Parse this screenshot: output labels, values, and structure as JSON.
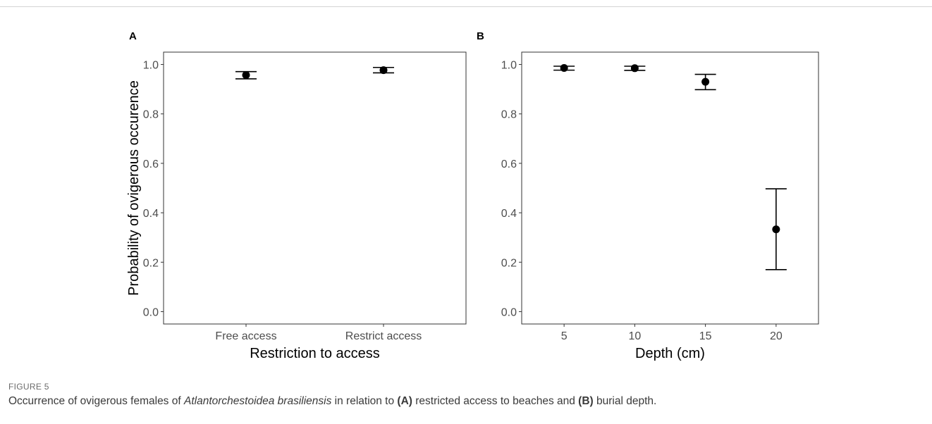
{
  "chart_data": [
    {
      "panel": "A",
      "type": "scatter",
      "categories": [
        "Free access",
        "Restrict access"
      ],
      "values": [
        0.957,
        0.977
      ],
      "ci_low": [
        0.942,
        0.966
      ],
      "ci_high": [
        0.971,
        0.988
      ],
      "xlabel": "Restriction to access",
      "ylabel": "Probability of ovigerous occurence",
      "ylim": [
        -0.05,
        1.05
      ],
      "yticks": [
        "0.0",
        "0.2",
        "0.4",
        "0.6",
        "0.8",
        "1.0"
      ],
      "grid": false
    },
    {
      "panel": "B",
      "type": "scatter",
      "categories": [
        "5",
        "10",
        "15",
        "20"
      ],
      "values": [
        0.986,
        0.985,
        0.93,
        0.333
      ],
      "ci_low": [
        0.977,
        0.976,
        0.898,
        0.17
      ],
      "ci_high": [
        0.993,
        0.993,
        0.96,
        0.497
      ],
      "xlabel": "Depth (cm)",
      "ylabel": "",
      "ylim": [
        -0.05,
        1.05
      ],
      "yticks": [
        "0.0",
        "0.2",
        "0.4",
        "0.6",
        "0.8",
        "1.0"
      ],
      "grid": false
    }
  ],
  "figure": {
    "label": "FIGURE 5",
    "caption_pre": "Occurrence of ovigerous females of ",
    "caption_species": "Atlantorchestoidea brasiliensis",
    "caption_mid1": " in relation to ",
    "caption_a": "(A)",
    "caption_mid2": " restricted access to beaches and ",
    "caption_b": "(B)",
    "caption_post": " burial depth."
  },
  "colors": {
    "marks": "#000000",
    "axis_text": "#4d4d4d",
    "title_text": "#000000"
  }
}
